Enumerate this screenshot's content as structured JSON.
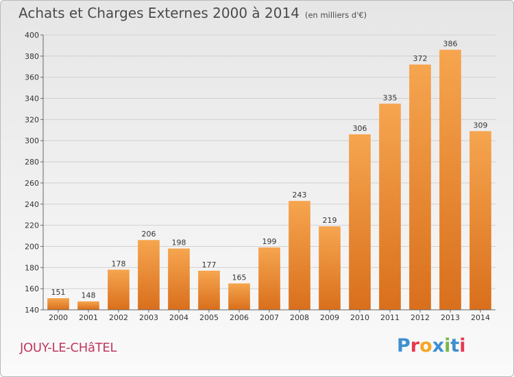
{
  "header": {
    "title": "Achats et Charges Externes 2000 à 2014",
    "subtitle": "(en milliers d'€)"
  },
  "footer": {
    "location": "JOUY-LE-CHâTEL",
    "brand": "Proxiti",
    "brand_colors": [
      "#3d8fd1",
      "#e8384f",
      "#f5a623",
      "#3d8fd1",
      "#7ab648",
      "#3d8fd1",
      "#e8384f"
    ]
  },
  "colors": {
    "bar_light": "#f6a54f",
    "bar_dark": "#d96f1c",
    "grid": "#cfcfcf"
  },
  "chart_data": {
    "type": "bar",
    "categories": [
      "2000",
      "2001",
      "2002",
      "2003",
      "2004",
      "2005",
      "2006",
      "2007",
      "2008",
      "2009",
      "2010",
      "2011",
      "2012",
      "2013",
      "2014"
    ],
    "values": [
      151,
      148,
      178,
      206,
      198,
      177,
      165,
      199,
      243,
      219,
      306,
      335,
      372,
      386,
      309
    ],
    "ylim": [
      140,
      400
    ],
    "yticks": [
      140,
      160,
      180,
      200,
      220,
      240,
      260,
      280,
      300,
      320,
      340,
      360,
      380,
      400
    ],
    "grid": true,
    "legend": "none"
  }
}
